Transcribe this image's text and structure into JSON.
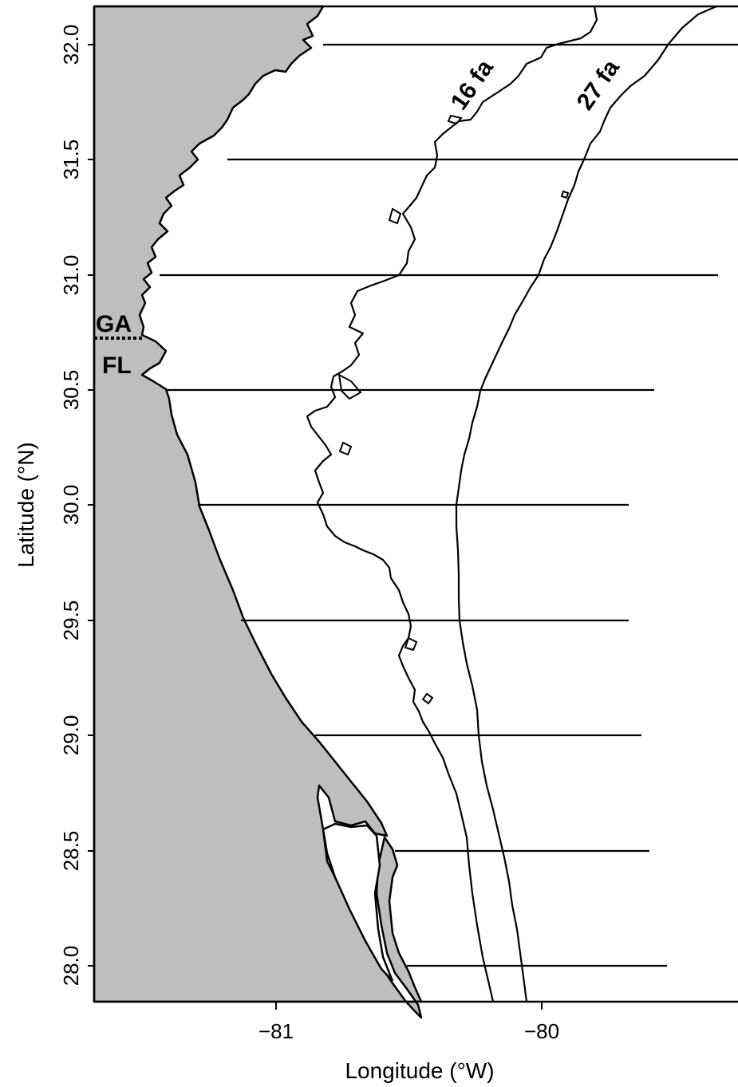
{
  "colors": {
    "land": "#bebebe",
    "line": "#000000",
    "background": "#ffffff"
  },
  "axes": {
    "x_label": "Longitude (°W)",
    "y_label": "Latitude (°N)",
    "x_ticks": [
      "−81",
      "−80"
    ],
    "y_ticks": [
      "28.0",
      "28.5",
      "29.0",
      "29.5",
      "30.0",
      "30.5",
      "31.0",
      "31.5",
      "32.0"
    ]
  },
  "labels": {
    "state_north": "GA",
    "state_south": "FL",
    "contour_shallow": "16 fa",
    "contour_deep": "27 fa"
  },
  "chart_data": {
    "type": "map",
    "x_range": [
      -81.7,
      -79.3
    ],
    "y_range": [
      27.83,
      32.16
    ],
    "transect_latitudes": [
      28.0,
      28.5,
      29.0,
      29.5,
      30.0,
      30.5,
      31.0,
      31.5,
      32.0
    ],
    "depth_contours_fathoms": [
      16,
      27
    ],
    "state_boundary_latitude": 30.72
  }
}
